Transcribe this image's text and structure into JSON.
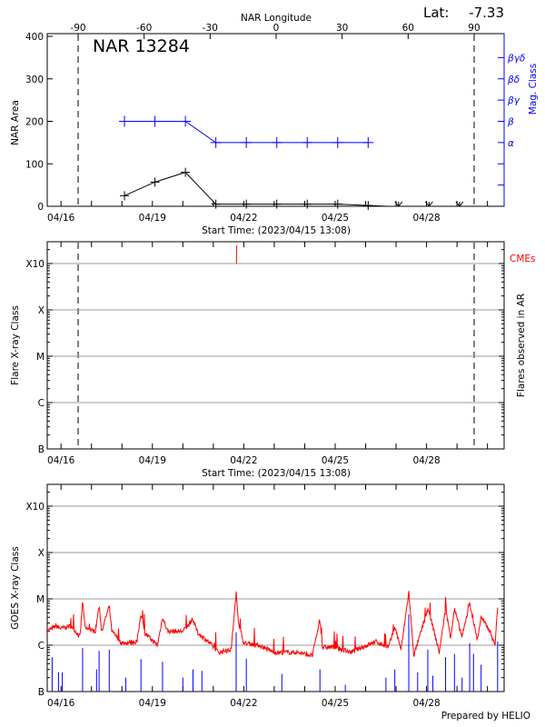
{
  "header": {
    "lat_label": "Lat:",
    "lat_value": "-7.33",
    "longitude_title": "NAR Longitude",
    "longitude_ticks": [
      "-90",
      "-60",
      "-30",
      "0",
      "30",
      "60",
      "90"
    ]
  },
  "time_axis": {
    "range": [
      "04/15 13:08",
      "04/30 13:08"
    ],
    "tick_labels": [
      "04/16",
      "04/19",
      "04/22",
      "04/25",
      "04/28"
    ],
    "start_time_label": "Start Time: (2023/04/15 13:08)"
  },
  "footer": {
    "prepared_by": "Prepared by HELIO"
  },
  "colors": {
    "area": "#000000",
    "mag_class": "#0000ff",
    "goes_flux": "#ff0000",
    "flare_events": "#0000ff",
    "cme": "#ff0000",
    "grid": "#999999"
  },
  "chart_data": [
    {
      "type": "line",
      "title": "NAR 13284",
      "ylabel": "NAR Area",
      "y2label": "Mag. Class",
      "ylim": [
        0,
        400
      ],
      "yticks": [
        "0",
        "100",
        "200",
        "300",
        "400"
      ],
      "y2_tick_labels": [
        "α",
        "β",
        "βγ",
        "βδ",
        "βγδ"
      ],
      "limb_longitudes": [
        -90,
        90
      ],
      "series": [
        {
          "color": "#000000",
          "points": [
            [
              "04/18 02:00",
              25
            ],
            [
              "04/19 02:00",
              57
            ],
            [
              "04/20 02:00",
              80
            ],
            [
              "04/21 02:00",
              5
            ],
            [
              "04/22 02:00",
              5
            ],
            [
              "04/23 02:00",
              5
            ],
            [
              "04/24 02:00",
              5
            ],
            [
              "04/25 02:00",
              5
            ],
            [
              "04/26 02:00",
              2
            ],
            [
              "04/26 17:00",
              0
            ]
          ],
          "below_range_markers": [
            "04/27 02:00",
            "04/28 02:00",
            "04/29 02:00"
          ]
        },
        {
          "color": "#0000ff",
          "axis": "right",
          "points": [
            [
              "04/18 02:00",
              "β"
            ],
            [
              "04/19 02:00",
              "β"
            ],
            [
              "04/20 02:00",
              "β"
            ],
            [
              "04/21 02:00",
              "α"
            ],
            [
              "04/22 02:00",
              "α"
            ],
            [
              "04/23 02:00",
              "α"
            ],
            [
              "04/24 02:00",
              "α"
            ],
            [
              "04/25 02:00",
              "α"
            ],
            [
              "04/26 02:00",
              "α"
            ]
          ]
        }
      ]
    },
    {
      "type": "scatter",
      "ylabel": "Flare X-ray Class",
      "y2label": "Flares observed in AR",
      "yticks": [
        "B",
        "C",
        "M",
        "X",
        "X10"
      ],
      "grid": true,
      "limb_longitudes": [
        -90,
        90
      ],
      "flares": [],
      "cme_label": "CMEs",
      "cmes": [
        "04/21 18:15"
      ]
    },
    {
      "type": "line",
      "ylabel": "GOES X-ray Class",
      "yticks": [
        "B",
        "C",
        "M",
        "X",
        "X10"
      ],
      "grid": true,
      "series": [
        {
          "color": "#ff0000",
          "points": [
            [
              "04/15 13:08",
              "C2.0"
            ],
            [
              "04/15 20:00",
              "C2.6"
            ],
            [
              "04/16 00:00",
              "C2.3"
            ],
            [
              "04/16 08:00",
              "C2.6"
            ],
            [
              "04/16 15:00",
              "C1.5"
            ],
            [
              "04/16 17:00",
              "M0.9"
            ],
            [
              "04/16 19:00",
              "C2.3"
            ],
            [
              "04/17 03:00",
              "C2.0"
            ],
            [
              "04/17 06:00",
              "M0.7"
            ],
            [
              "04/17 08:00",
              "C2.0"
            ],
            [
              "04/17 14:00",
              "M0.7"
            ],
            [
              "04/17 16:00",
              "C2.0"
            ],
            [
              "04/18 00:00",
              "C1.1"
            ],
            [
              "04/18 12:00",
              "C1.2"
            ],
            [
              "04/18 15:00",
              "C5.0"
            ],
            [
              "04/18 18:00",
              "C1.8"
            ],
            [
              "04/19 04:00",
              "C1.0"
            ],
            [
              "04/19 08:00",
              "C4.0"
            ],
            [
              "04/19 12:00",
              "C2.0"
            ],
            [
              "04/20 00:00",
              "C2.0"
            ],
            [
              "04/20 08:00",
              "C3.5"
            ],
            [
              "04/20 12:00",
              "C1.8"
            ],
            [
              "04/20 20:00",
              "C1.2"
            ],
            [
              "04/21 04:00",
              "C0.7"
            ],
            [
              "04/21 14:00",
              "C0.8"
            ],
            [
              "04/21 18:00",
              "M1.3"
            ],
            [
              "04/21 20:00",
              "C3.0"
            ],
            [
              "04/22 00:00",
              "C1.1"
            ],
            [
              "04/22 12:00",
              "C1.0"
            ],
            [
              "04/23 00:00",
              "C0.7"
            ],
            [
              "04/23 18:00",
              "C0.7"
            ],
            [
              "04/24 06:00",
              "B6.0"
            ],
            [
              "04/24 12:00",
              "C3.5"
            ],
            [
              "04/24 14:00",
              "C0.9"
            ],
            [
              "04/25 00:00",
              "C0.9"
            ],
            [
              "04/25 12:00",
              "C0.7"
            ],
            [
              "04/26 08:00",
              "C1.2"
            ],
            [
              "04/26 18:00",
              "C0.9"
            ],
            [
              "04/26 23:00",
              "C2.5"
            ],
            [
              "04/27 04:00",
              "C0.8"
            ],
            [
              "04/27 10:00",
              "M1.4"
            ],
            [
              "04/27 14:00",
              "B6.0"
            ],
            [
              "04/28 01:00",
              "M0.6"
            ],
            [
              "04/28 05:00",
              "C2.5"
            ],
            [
              "04/28 10:00",
              "C0.7"
            ],
            [
              "04/28 15:00",
              "M0.6"
            ],
            [
              "04/28 19:00",
              "C1.5"
            ],
            [
              "04/28 22:00",
              "M0.6"
            ],
            [
              "04/29 04:00",
              "C1.5"
            ],
            [
              "04/29 10:00",
              "M0.8"
            ],
            [
              "04/29 16:00",
              "C1.3"
            ],
            [
              "04/29 19:00",
              "C4.0"
            ],
            [
              "04/30 02:00",
              "C2.0"
            ],
            [
              "04/30 06:00",
              "C1.0"
            ],
            [
              "04/30 08:00",
              "M0.7"
            ],
            [
              "04/30 13:00",
              "C2.5"
            ]
          ]
        },
        {
          "color": "#0000ff",
          "type": "bar",
          "events": [
            [
              "04/15 17:00",
              "B5.5"
            ],
            [
              "04/15 22:00",
              "B2.6"
            ],
            [
              "04/16 01:00",
              "B2.6"
            ],
            [
              "04/16 17:00",
              "B8.8"
            ],
            [
              "04/17 04:00",
              "B3.0"
            ],
            [
              "04/17 06:00",
              "B7.5"
            ],
            [
              "04/17 14:00",
              "B8.0"
            ],
            [
              "04/18 03:00",
              "B2.0"
            ],
            [
              "04/18 15:00",
              "B5.0"
            ],
            [
              "04/19 08:00",
              "B4.4"
            ],
            [
              "04/20 00:00",
              "B2.0"
            ],
            [
              "04/20 08:00",
              "B3.0"
            ],
            [
              "04/20 15:00",
              "B2.8"
            ],
            [
              "04/21 18:00",
              "C1.9"
            ],
            [
              "04/22 02:00",
              "B5.1"
            ],
            [
              "04/23 06:00",
              "B2.4"
            ],
            [
              "04/24 12:00",
              "B3.0"
            ],
            [
              "04/25 08:00",
              "B1.4"
            ],
            [
              "04/26 16:00",
              "B2.0"
            ],
            [
              "04/26 23:00",
              "B3.0"
            ],
            [
              "04/27 10:00",
              "C4.6"
            ],
            [
              "04/27 17:00",
              "B2.6"
            ],
            [
              "04/28 01:00",
              "B8.0"
            ],
            [
              "04/28 05:00",
              "B2.2"
            ],
            [
              "04/28 15:00",
              "B5.5"
            ],
            [
              "04/28 22:00",
              "B6.5"
            ],
            [
              "04/29 04:00",
              "B2.0"
            ],
            [
              "04/29 10:00",
              "C1.1"
            ],
            [
              "04/29 13:00",
              "B6.5"
            ],
            [
              "04/29 19:00",
              "B3.8"
            ],
            [
              "04/30 08:00",
              "C1.2"
            ]
          ]
        }
      ]
    }
  ]
}
